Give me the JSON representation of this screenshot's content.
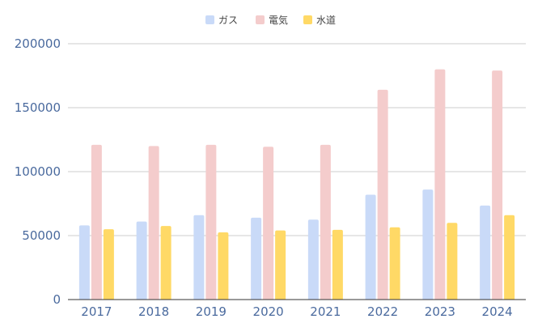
{
  "chart_data": {
    "type": "bar",
    "categories": [
      "2017",
      "2018",
      "2019",
      "2020",
      "2021",
      "2022",
      "2023",
      "2024"
    ],
    "series": [
      {
        "name": "ガス",
        "color": "#c9daf8",
        "values": [
          58000,
          61000,
          66000,
          64000,
          62500,
          82000,
          86000,
          73500
        ]
      },
      {
        "name": "電気",
        "color": "#f4cccc",
        "values": [
          121000,
          120000,
          121000,
          119500,
          121000,
          164000,
          180000,
          179000
        ]
      },
      {
        "name": "水道",
        "color": "#ffd966",
        "values": [
          55000,
          57500,
          52500,
          54000,
          54500,
          56500,
          60000,
          66000
        ]
      }
    ],
    "yticks": [
      "0",
      "50000",
      "100000",
      "150000",
      "200000"
    ],
    "ylim": [
      0,
      200000
    ],
    "grid": true,
    "legend_position": "top-center"
  }
}
